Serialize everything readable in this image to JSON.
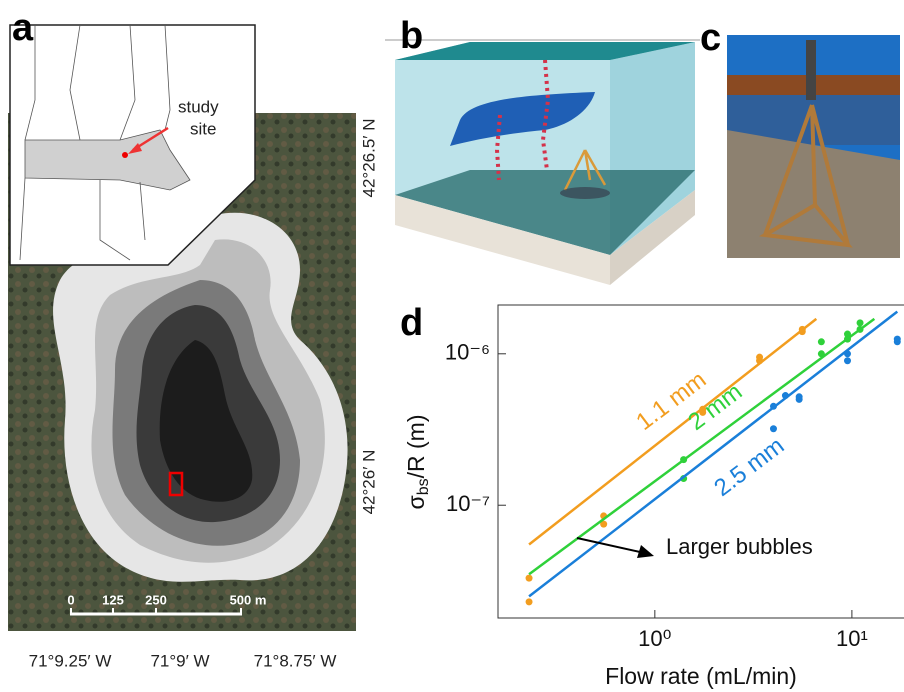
{
  "panel_labels": [
    "a",
    "b",
    "c",
    "d"
  ],
  "map": {
    "inset_label": [
      "study",
      "site"
    ],
    "lat_labels": [
      "42°26.5′ N",
      "42°26′ N"
    ],
    "lon_labels": [
      "71°9.25′ W",
      "71°9′ W",
      "71°8.75′ W"
    ],
    "scale_bar": [
      "0",
      "125",
      "250",
      "500 m"
    ]
  },
  "chart_data": {
    "type": "scatter",
    "x_label": "Flow rate (mL/min)",
    "y_label": {
      "symbol": "σ",
      "subscript": "bs",
      "rest": "/R (m)"
    },
    "log_x": true,
    "log_y": true,
    "xlim": [
      0.16,
      18.6
    ],
    "ylim": [
      1.8e-08,
      2.1e-06
    ],
    "xticks": [
      {
        "value": 1,
        "label": "10⁰"
      },
      {
        "value": 10,
        "label": "10¹"
      }
    ],
    "yticks": [
      {
        "value": 1e-07,
        "label": "10⁻⁷"
      },
      {
        "value": 1e-06,
        "label": "10⁻⁶"
      }
    ],
    "series": [
      {
        "name": "1.1 mm",
        "color": "#f29d1f",
        "x": [
          0.23,
          0.23,
          0.55,
          0.55,
          1.75,
          1.75,
          3.4,
          3.4,
          5.6,
          5.6
        ],
        "values": [
          3.3e-08,
          2.3e-08,
          8.5e-08,
          7.5e-08,
          4.3e-07,
          4.1e-07,
          9.5e-07,
          9e-07,
          1.45e-06,
          1.4e-06
        ],
        "fit_x": [
          0.23,
          6.6
        ],
        "fit_values": [
          5.5e-08,
          1.7e-06
        ]
      },
      {
        "name": "2 mm",
        "color": "#2fd13a",
        "x": [
          1.4,
          1.4,
          7,
          7,
          9.5,
          9.5,
          11,
          11
        ],
        "values": [
          2e-07,
          1.5e-07,
          1.2e-06,
          1e-06,
          1.35e-06,
          1.25e-06,
          1.6e-06,
          1.45e-06
        ],
        "fit_x": [
          0.23,
          13
        ],
        "fit_values": [
          3.5e-08,
          1.7e-06
        ]
      },
      {
        "name": "2.5 mm",
        "color": "#1a7fd9",
        "x": [
          4,
          4,
          4.6,
          5.4,
          5.4,
          9.5,
          9.5,
          17,
          17
        ],
        "values": [
          4.5e-07,
          3.2e-07,
          5.3e-07,
          5e-07,
          5.2e-07,
          1e-06,
          9e-07,
          1.25e-06,
          1.2e-06
        ],
        "fit_x": [
          0.23,
          0.55,
          17
        ],
        "fit_values": [
          2.5e-08,
          6e-08,
          1.9e-06
        ]
      }
    ],
    "annotation": "Larger bubbles"
  }
}
